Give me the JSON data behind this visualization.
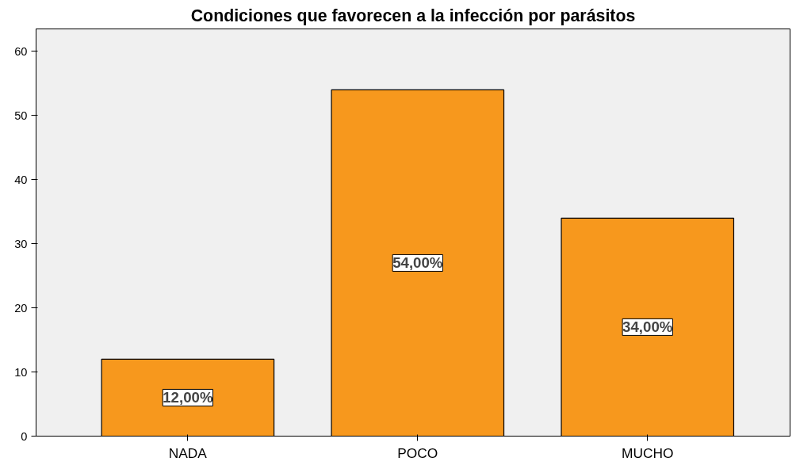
{
  "chart_data": {
    "type": "bar",
    "title": "Condiciones que favorecen a la infección por parásitos",
    "categories": [
      "NADA",
      "POCO",
      "MUCHO"
    ],
    "values": [
      12,
      54,
      34
    ],
    "color": "#f7981d",
    "value_labels": [
      "12,00%",
      "54,00%",
      "34,00%"
    ],
    "ylim": [
      0,
      63.5
    ],
    "yticks": [
      0,
      10,
      20,
      30,
      40,
      50,
      60
    ],
    "grid": false
  }
}
